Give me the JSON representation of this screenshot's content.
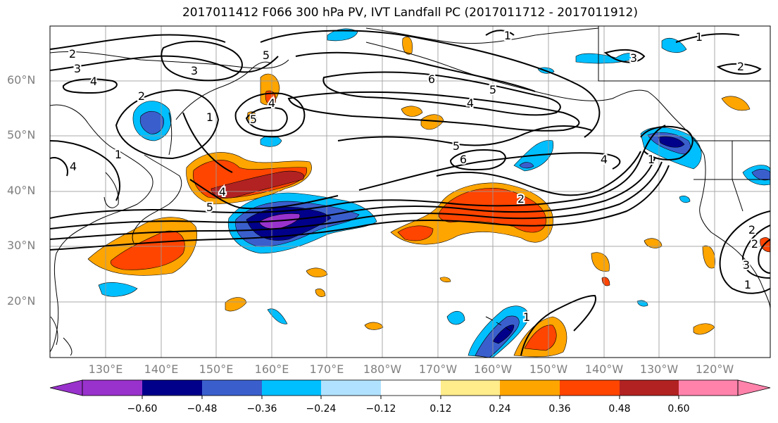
{
  "title": "2017011412 F066 300 hPa PV, IVT Landfall PC (2017011712 - 2017011912)",
  "lat_labels": [
    "60°N",
    "50°N",
    "40°N",
    "30°N",
    "20°N"
  ],
  "lon_labels": [
    "130°E",
    "140°E",
    "150°E",
    "160°E",
    "170°E",
    "180°W",
    "170°W",
    "160°W",
    "150°W",
    "140°W",
    "130°W",
    "120°W"
  ],
  "colorbar": {
    "ticks": [
      "−0.60",
      "−0.48",
      "−0.36",
      "−0.24",
      "−0.12",
      "0.12",
      "0.24",
      "0.36",
      "0.48",
      "0.60"
    ],
    "colors": [
      "#9932CC",
      "#00008B",
      "#3A5FCD",
      "#00BFFF",
      "#B0E2FF",
      "#FFFFFF",
      "#FFEC8B",
      "#FFA500",
      "#FF4500",
      "#B22222",
      "#FF82AB"
    ]
  },
  "contour_labels": [
    "2",
    "3",
    "4",
    "2",
    "3",
    "1",
    "5",
    "4",
    "6",
    "5",
    "4",
    "1",
    "2",
    "3",
    "4",
    "5",
    "6",
    "5",
    "4",
    "1",
    "2",
    "1",
    "4",
    "5",
    "2",
    "2",
    "1",
    "3",
    "1",
    "1"
  ]
}
